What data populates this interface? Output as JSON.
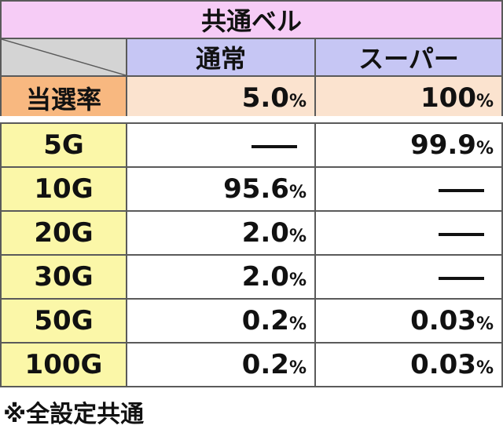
{
  "title": "共通ベル",
  "columns": {
    "normal": "通常",
    "super": "スーパー"
  },
  "win_rate": {
    "label": "当選率",
    "normal": "5.0",
    "super": "100"
  },
  "percent_sign": "%",
  "rows": [
    {
      "label": "5G",
      "normal": null,
      "super": "99.9"
    },
    {
      "label": "10G",
      "normal": "95.6",
      "super": null
    },
    {
      "label": "20G",
      "normal": "2.0",
      "super": null
    },
    {
      "label": "30G",
      "normal": "2.0",
      "super": null
    },
    {
      "label": "50G",
      "normal": "0.2",
      "super": "0.03"
    },
    {
      "label": "100G",
      "normal": "0.2",
      "super": "0.03"
    }
  ],
  "footnote": "※全設定共通",
  "colors": {
    "title_bg": "#f6ccf6",
    "column_header_bg": "#c6c6f4",
    "win_rate_label_bg": "#f8b880",
    "win_rate_value_bg": "#fbe3cf",
    "game_label_bg": "#fbf7a8"
  }
}
